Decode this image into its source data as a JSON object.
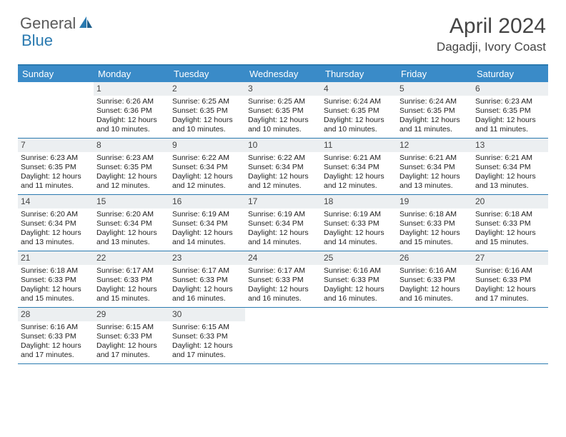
{
  "logo": {
    "part1": "General",
    "part2": "Blue"
  },
  "title": "April 2024",
  "location": "Dagadji, Ivory Coast",
  "colors": {
    "header_bg": "#3a8bc8",
    "border": "#2a7ab0",
    "daynum_bg": "#eceff1",
    "text": "#222222",
    "logo_gray": "#5a5a5a",
    "logo_blue": "#2a7ab0"
  },
  "day_names": [
    "Sunday",
    "Monday",
    "Tuesday",
    "Wednesday",
    "Thursday",
    "Friday",
    "Saturday"
  ],
  "weeks": [
    [
      null,
      {
        "n": "1",
        "sr": "6:26 AM",
        "ss": "6:36 PM",
        "dl": "12 hours and 10 minutes."
      },
      {
        "n": "2",
        "sr": "6:25 AM",
        "ss": "6:35 PM",
        "dl": "12 hours and 10 minutes."
      },
      {
        "n": "3",
        "sr": "6:25 AM",
        "ss": "6:35 PM",
        "dl": "12 hours and 10 minutes."
      },
      {
        "n": "4",
        "sr": "6:24 AM",
        "ss": "6:35 PM",
        "dl": "12 hours and 10 minutes."
      },
      {
        "n": "5",
        "sr": "6:24 AM",
        "ss": "6:35 PM",
        "dl": "12 hours and 11 minutes."
      },
      {
        "n": "6",
        "sr": "6:23 AM",
        "ss": "6:35 PM",
        "dl": "12 hours and 11 minutes."
      }
    ],
    [
      {
        "n": "7",
        "sr": "6:23 AM",
        "ss": "6:35 PM",
        "dl": "12 hours and 11 minutes."
      },
      {
        "n": "8",
        "sr": "6:23 AM",
        "ss": "6:35 PM",
        "dl": "12 hours and 12 minutes."
      },
      {
        "n": "9",
        "sr": "6:22 AM",
        "ss": "6:34 PM",
        "dl": "12 hours and 12 minutes."
      },
      {
        "n": "10",
        "sr": "6:22 AM",
        "ss": "6:34 PM",
        "dl": "12 hours and 12 minutes."
      },
      {
        "n": "11",
        "sr": "6:21 AM",
        "ss": "6:34 PM",
        "dl": "12 hours and 12 minutes."
      },
      {
        "n": "12",
        "sr": "6:21 AM",
        "ss": "6:34 PM",
        "dl": "12 hours and 13 minutes."
      },
      {
        "n": "13",
        "sr": "6:21 AM",
        "ss": "6:34 PM",
        "dl": "12 hours and 13 minutes."
      }
    ],
    [
      {
        "n": "14",
        "sr": "6:20 AM",
        "ss": "6:34 PM",
        "dl": "12 hours and 13 minutes."
      },
      {
        "n": "15",
        "sr": "6:20 AM",
        "ss": "6:34 PM",
        "dl": "12 hours and 13 minutes."
      },
      {
        "n": "16",
        "sr": "6:19 AM",
        "ss": "6:34 PM",
        "dl": "12 hours and 14 minutes."
      },
      {
        "n": "17",
        "sr": "6:19 AM",
        "ss": "6:34 PM",
        "dl": "12 hours and 14 minutes."
      },
      {
        "n": "18",
        "sr": "6:19 AM",
        "ss": "6:33 PM",
        "dl": "12 hours and 14 minutes."
      },
      {
        "n": "19",
        "sr": "6:18 AM",
        "ss": "6:33 PM",
        "dl": "12 hours and 15 minutes."
      },
      {
        "n": "20",
        "sr": "6:18 AM",
        "ss": "6:33 PM",
        "dl": "12 hours and 15 minutes."
      }
    ],
    [
      {
        "n": "21",
        "sr": "6:18 AM",
        "ss": "6:33 PM",
        "dl": "12 hours and 15 minutes."
      },
      {
        "n": "22",
        "sr": "6:17 AM",
        "ss": "6:33 PM",
        "dl": "12 hours and 15 minutes."
      },
      {
        "n": "23",
        "sr": "6:17 AM",
        "ss": "6:33 PM",
        "dl": "12 hours and 16 minutes."
      },
      {
        "n": "24",
        "sr": "6:17 AM",
        "ss": "6:33 PM",
        "dl": "12 hours and 16 minutes."
      },
      {
        "n": "25",
        "sr": "6:16 AM",
        "ss": "6:33 PM",
        "dl": "12 hours and 16 minutes."
      },
      {
        "n": "26",
        "sr": "6:16 AM",
        "ss": "6:33 PM",
        "dl": "12 hours and 16 minutes."
      },
      {
        "n": "27",
        "sr": "6:16 AM",
        "ss": "6:33 PM",
        "dl": "12 hours and 17 minutes."
      }
    ],
    [
      {
        "n": "28",
        "sr": "6:16 AM",
        "ss": "6:33 PM",
        "dl": "12 hours and 17 minutes."
      },
      {
        "n": "29",
        "sr": "6:15 AM",
        "ss": "6:33 PM",
        "dl": "12 hours and 17 minutes."
      },
      {
        "n": "30",
        "sr": "6:15 AM",
        "ss": "6:33 PM",
        "dl": "12 hours and 17 minutes."
      },
      null,
      null,
      null,
      null
    ]
  ],
  "labels": {
    "sunrise": "Sunrise: ",
    "sunset": "Sunset: ",
    "daylight": "Daylight: "
  }
}
